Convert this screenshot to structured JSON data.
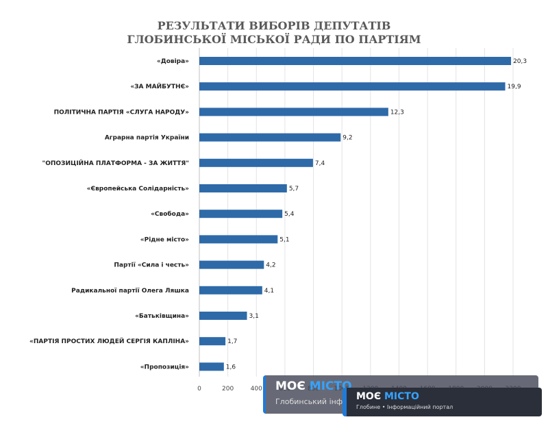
{
  "chart_data": {
    "type": "bar",
    "orientation": "horizontal",
    "title_line1": "РЕЗУЛЬТАТИ ВИБОРІВ ДЕПУТАТІВ",
    "title_line2": "ГЛОБИНСЬКОЇ МІСЬКОЇ РАДИ ПО ПАРТІЯМ",
    "categories": [
      "«Довіра»",
      "«ЗА МАЙБУТНЄ»",
      "ПОЛІТИЧНА ПАРТІЯ «СЛУГА НАРОДУ»",
      "Аграрна партія України",
      "\"ОПОЗИЦІЙНА ПЛАТФОРМА - ЗА ЖИТТЯ\"",
      "«Європейська Солідарність»",
      "«Свобода»",
      "«Рідне місто»",
      "Партії «Сила і честь»",
      "Радикальної партії Олега Ляшка",
      "«Батьківщина»",
      "«ПАРТІЯ ПРОСТИХ ЛЮДЕЙ СЕРГІЯ КАПЛІНА»",
      "«Пропозиція»"
    ],
    "bar_values": [
      2186,
      2145,
      1325,
      991,
      797,
      614,
      582,
      549,
      453,
      441,
      334,
      183,
      172
    ],
    "labels": [
      "20,3",
      "19,9",
      "12,3",
      "9,2",
      "7,4",
      "5,7",
      "5,4",
      "5,1",
      "4,2",
      "4,1",
      "3,1",
      "1,7",
      "1,6"
    ],
    "xticks": [
      "0",
      "200",
      "400",
      "600",
      "800",
      "1000",
      "1200",
      "1400",
      "1600",
      "1800",
      "2000",
      "2200"
    ],
    "xlim": [
      0,
      2200
    ],
    "bar_color": "#2e6aa8",
    "grid": true
  },
  "watermark": {
    "logo_word1": "МОЄ",
    "logo_word2": "МІСТО",
    "subtitle_back": "Глобинський інформаційний портал",
    "subtitle_front": "Глобине • Інформаційний портал"
  }
}
